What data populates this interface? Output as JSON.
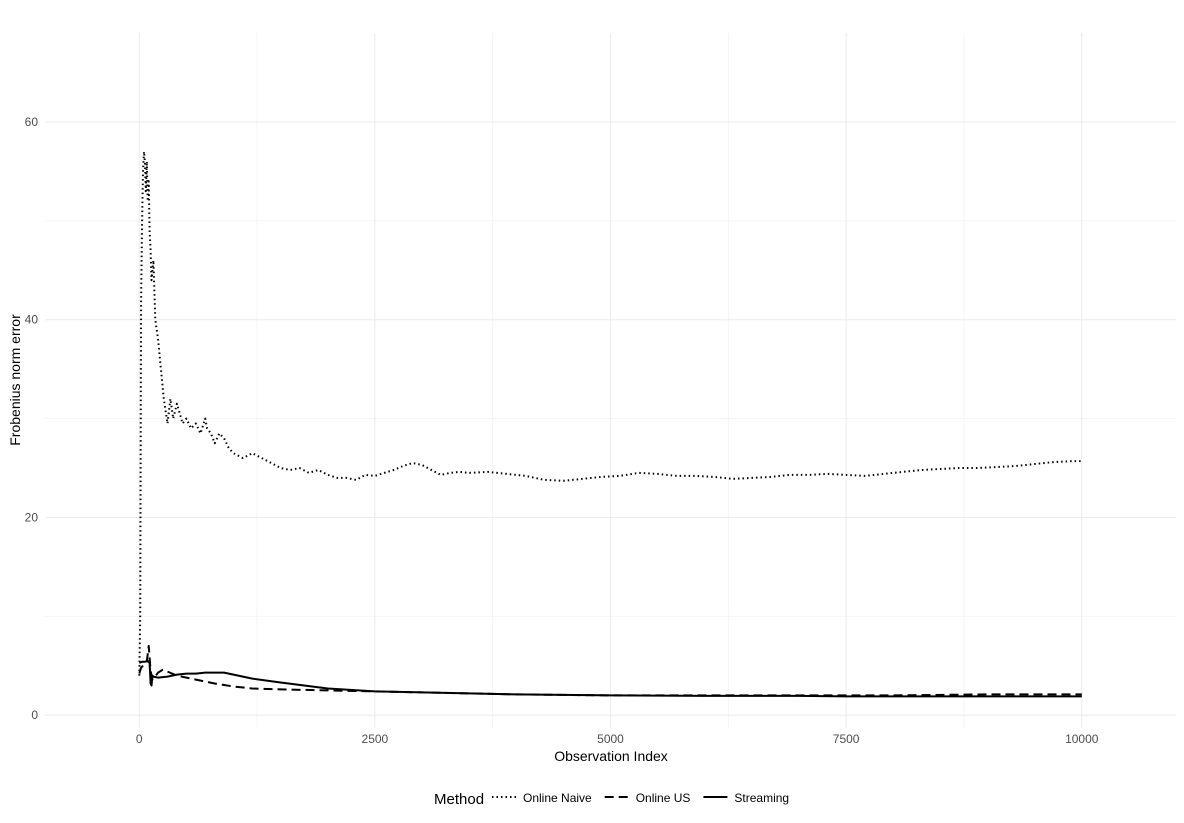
{
  "chart_data": {
    "type": "line",
    "title": "",
    "xlabel": "Observation Index",
    "ylabel": "Frobenius norm error",
    "xlim": [
      -1000,
      11000
    ],
    "ylim": [
      -1.3,
      69
    ],
    "xticks": [
      0,
      2500,
      5000,
      7500,
      10000
    ],
    "yticks": [
      0,
      20,
      40,
      60
    ],
    "grid": true,
    "legend": {
      "title": "Method",
      "position": "bottom"
    },
    "series": [
      {
        "name": "Online Naive",
        "linestyle": "dotted",
        "color": "#000000",
        "x": [
          0,
          10,
          20,
          30,
          40,
          50,
          60,
          70,
          80,
          90,
          100,
          110,
          120,
          130,
          150,
          170,
          200,
          230,
          260,
          300,
          330,
          360,
          400,
          430,
          460,
          500,
          550,
          600,
          650,
          700,
          720,
          760,
          800,
          850,
          900,
          950,
          1000,
          1100,
          1200,
          1300,
          1400,
          1500,
          1600,
          1700,
          1800,
          1900,
          2000,
          2100,
          2200,
          2300,
          2400,
          2500,
          2600,
          2700,
          2800,
          2900,
          3000,
          3100,
          3200,
          3300,
          3400,
          3500,
          3700,
          3900,
          4100,
          4300,
          4500,
          4700,
          4900,
          5100,
          5300,
          5500,
          5700,
          5900,
          6100,
          6300,
          6500,
          6700,
          6900,
          7100,
          7300,
          7500,
          7700,
          7900,
          8100,
          8300,
          8500,
          8700,
          8900,
          9100,
          9300,
          9500,
          9700,
          9900,
          9990
        ],
        "y": [
          4,
          10,
          42,
          50,
          55,
          57,
          56,
          53,
          56,
          52,
          54,
          49,
          47,
          44,
          46,
          40,
          38,
          35,
          32,
          29.5,
          32,
          30,
          31.5,
          30.5,
          29.5,
          30,
          29,
          29.5,
          28.5,
          30,
          29,
          28.5,
          27.5,
          28.5,
          28,
          27,
          26.5,
          26,
          26.5,
          26,
          25.5,
          25,
          24.8,
          25,
          24.5,
          24.8,
          24.3,
          24,
          24,
          23.8,
          24.3,
          24.2,
          24.5,
          24.8,
          25.2,
          25.5,
          25.3,
          24.8,
          24.3,
          24.5,
          24.6,
          24.5,
          24.6,
          24.4,
          24.2,
          23.8,
          23.7,
          23.9,
          24.1,
          24.2,
          24.5,
          24.4,
          24.2,
          24.2,
          24.1,
          23.9,
          24,
          24.1,
          24.3,
          24.3,
          24.4,
          24.3,
          24.2,
          24.4,
          24.6,
          24.8,
          24.9,
          25,
          25,
          25.1,
          25.2,
          25.4,
          25.6,
          25.7,
          25.7
        ]
      },
      {
        "name": "Online US",
        "linestyle": "dashed",
        "color": "#000000",
        "x": [
          0,
          20,
          40,
          60,
          80,
          100,
          120,
          140,
          160,
          200,
          250,
          300,
          400,
          500,
          600,
          700,
          800,
          1000,
          1200,
          1500,
          2000,
          2500,
          3000,
          3500,
          4000,
          5000,
          6000,
          7000,
          8000,
          9000,
          10000
        ],
        "y": [
          4.2,
          4.8,
          5,
          5.2,
          5.4,
          7,
          4.5,
          3.6,
          3.8,
          4.3,
          4.6,
          4.4,
          4,
          3.8,
          3.6,
          3.4,
          3.2,
          2.9,
          2.7,
          2.6,
          2.5,
          2.4,
          2.3,
          2.2,
          2.1,
          2,
          2,
          2,
          2,
          2.1,
          2.1
        ]
      },
      {
        "name": "Streaming",
        "linestyle": "solid",
        "color": "#000000",
        "x": [
          0,
          30,
          60,
          90,
          110,
          120,
          130,
          140,
          150,
          200,
          300,
          400,
          500,
          600,
          700,
          800,
          900,
          1000,
          1200,
          1500,
          2000,
          2500,
          3000,
          3500,
          4000,
          5000,
          6000,
          7000,
          7500,
          8000,
          9000,
          10000
        ],
        "y": [
          5.3,
          5.4,
          5.4,
          5.5,
          5.3,
          3.2,
          3,
          4,
          3.9,
          3.8,
          3.9,
          4.1,
          4.2,
          4.2,
          4.3,
          4.3,
          4.3,
          4.1,
          3.7,
          3.3,
          2.7,
          2.4,
          2.3,
          2.2,
          2.1,
          2,
          1.95,
          1.95,
          1.9,
          1.9,
          1.9,
          1.9
        ]
      }
    ]
  }
}
